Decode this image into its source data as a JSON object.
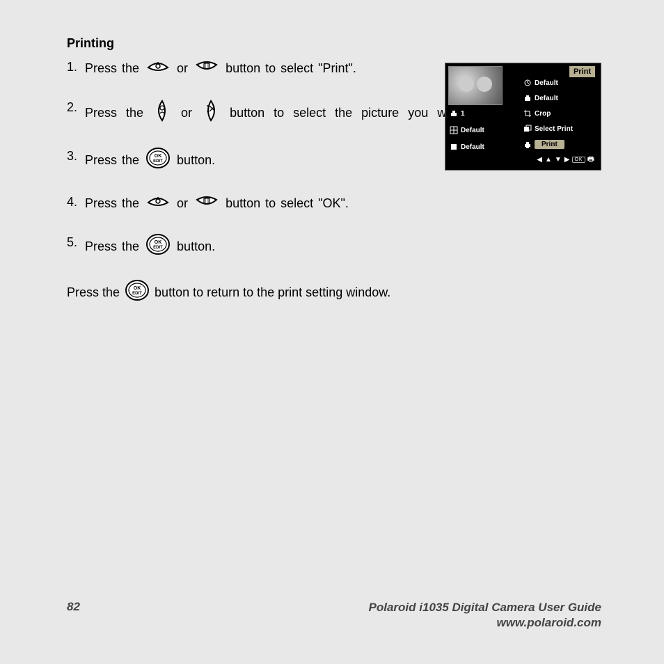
{
  "heading": "Printing",
  "steps": [
    {
      "n": "1.",
      "pre": "Press the ",
      "mid": " or ",
      "post": " button to select \"Print\".",
      "icon1": "up",
      "icon2": "down"
    },
    {
      "n": "2.",
      "pre": "Press the ",
      "mid": " or ",
      "post": " button to select the picture you want to print.",
      "icon1": "left",
      "icon2": "right",
      "wide": true
    },
    {
      "n": "3.",
      "pre": "Press the ",
      "post": " button.",
      "icon1": "ok"
    },
    {
      "n": "4.",
      "pre": "Press the ",
      "mid": " or ",
      "post": " button to select \"OK\".",
      "icon1": "up",
      "icon2": "down"
    },
    {
      "n": "5.",
      "pre": "Press the ",
      "post": " button.",
      "icon1": "ok"
    }
  ],
  "final_pre": "Press the ",
  "final_post": " button to return to the print setting window.",
  "screen": {
    "title": "Print",
    "rows_left": [
      {
        "icon": "copies",
        "label": "1"
      },
      {
        "icon": "layout",
        "label": "Default"
      },
      {
        "icon": "paper",
        "label": "Default"
      }
    ],
    "rows_right": [
      {
        "icon": "date",
        "label": "Default"
      },
      {
        "icon": "quality",
        "label": "Default"
      },
      {
        "icon": "crop",
        "label": "Crop"
      },
      {
        "icon": "select",
        "label": "Select Print"
      },
      {
        "icon": "print",
        "label": "Print",
        "highlight": true
      }
    ],
    "nav": [
      "◀",
      "▲",
      "▼",
      "▶",
      "OK",
      "⎙"
    ]
  },
  "footer": {
    "page": "82",
    "title": "Polaroid i1035 Digital Camera User Guide",
    "url": "www.polaroid.com"
  },
  "colors": {
    "panel_accent": "#b7b093",
    "panel_bg": "#000000",
    "page_bg": "#e8e8e8"
  }
}
